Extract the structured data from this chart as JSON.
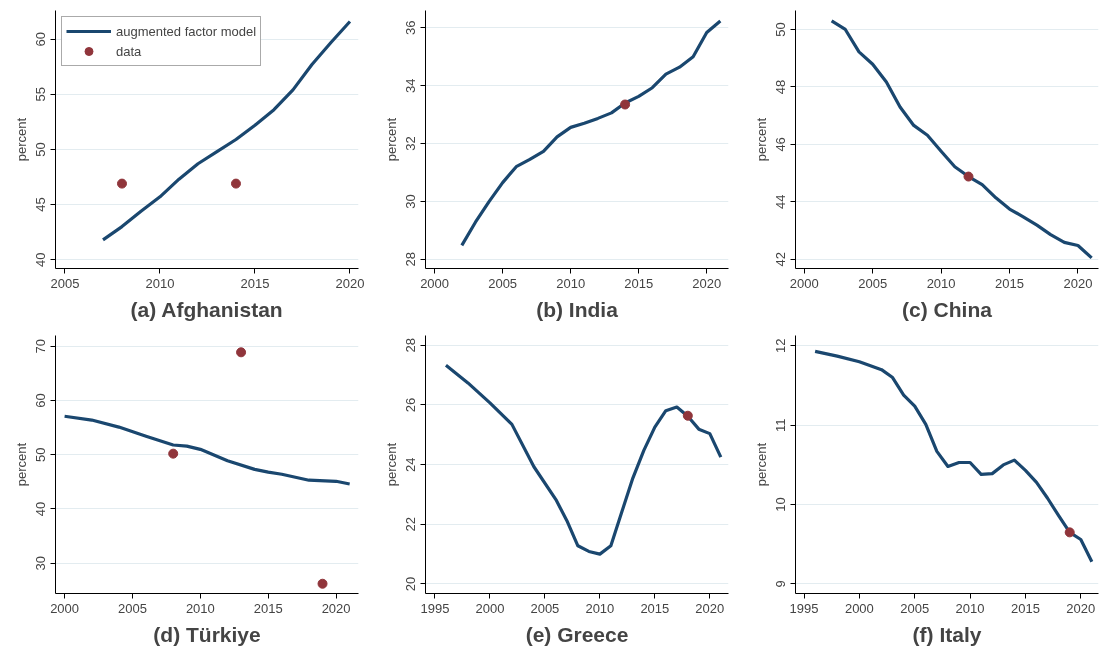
{
  "chart_data": [
    {
      "type": "line",
      "title": "(a) Afghanistan",
      "ylabel": "percent",
      "xlim": [
        2004.5,
        2020.45
      ],
      "ylim": [
        39.2,
        62.6
      ],
      "xticks": [
        2005,
        2010,
        2015,
        2020
      ],
      "yticks": [
        40,
        45,
        50,
        55,
        60
      ],
      "grid": "y",
      "legend": "top left",
      "series": [
        {
          "name": "augmented factor model",
          "color": "#1a476f",
          "x": [
            2007,
            2008,
            2009,
            2010,
            2011,
            2012,
            2013,
            2014,
            2015,
            2016,
            2017,
            2018,
            2019,
            2020
          ],
          "values": [
            41.8,
            43.0,
            44.4,
            45.7,
            47.3,
            48.7,
            49.8,
            50.9,
            52.2,
            53.6,
            55.4,
            57.7,
            59.7,
            61.6
          ]
        },
        {
          "name": "data",
          "type": "scatter",
          "marker": "circle",
          "color": "#90353b",
          "x": [
            2008,
            2014
          ],
          "values": [
            46.9,
            46.9
          ]
        }
      ]
    },
    {
      "type": "line",
      "title": "(b) India",
      "ylabel": "percent",
      "xlim": [
        1999.33,
        2021.6
      ],
      "ylim": [
        27.68,
        36.6
      ],
      "xticks": [
        2000,
        2005,
        2010,
        2015,
        2020
      ],
      "yticks": [
        28,
        30,
        32,
        34,
        36
      ],
      "grid": "y",
      "legend": false,
      "series": [
        {
          "color": "#1a476f",
          "x": [
            2002,
            2003,
            2004,
            2005,
            2006,
            2007,
            2008,
            2009,
            2010,
            2011,
            2012,
            2013,
            2014,
            2015,
            2016,
            2017,
            2018,
            2019,
            2020,
            2021
          ],
          "values": [
            28.48,
            29.28,
            29.99,
            30.65,
            31.2,
            31.45,
            31.73,
            32.23,
            32.56,
            32.7,
            32.87,
            33.06,
            33.4,
            33.63,
            33.93,
            34.4,
            34.64,
            35.0,
            35.84,
            36.24
          ]
        },
        {
          "type": "scatter",
          "marker": "circle",
          "color": "#90353b",
          "x": [
            2014
          ],
          "values": [
            33.35
          ]
        }
      ]
    },
    {
      "type": "line",
      "title": "(c) China",
      "ylabel": "percent",
      "xlim": [
        1999.36,
        2021.5
      ],
      "ylim": [
        41.68,
        50.66
      ],
      "xticks": [
        2000,
        2005,
        2010,
        2015,
        2020
      ],
      "yticks": [
        42,
        44,
        46,
        48,
        50
      ],
      "grid": "y",
      "legend": false,
      "series": [
        {
          "color": "#1a476f",
          "x": [
            2002,
            2003,
            2004,
            2005,
            2006,
            2007,
            2008,
            2009,
            2010,
            2011,
            2012,
            2013,
            2014,
            2015,
            2016,
            2017,
            2018,
            2019,
            2020,
            2021
          ],
          "values": [
            50.3,
            50.0,
            49.22,
            48.79,
            48.17,
            47.3,
            46.66,
            46.32,
            45.76,
            45.22,
            44.88,
            44.6,
            44.14,
            43.75,
            43.48,
            43.19,
            42.86,
            42.59,
            42.48,
            42.05
          ]
        },
        {
          "type": "scatter",
          "marker": "circle",
          "color": "#90353b",
          "x": [
            2012
          ],
          "values": [
            44.88
          ]
        }
      ]
    },
    {
      "type": "line",
      "title": "(d) Türkiye",
      "ylabel": "percent",
      "xlim": [
        1999.33,
        2021.65
      ],
      "ylim": [
        24.4,
        72
      ],
      "xticks": [
        2000,
        2005,
        2010,
        2015,
        2020
      ],
      "yticks": [
        30,
        40,
        50,
        60,
        70
      ],
      "grid": "y",
      "legend": false,
      "series": [
        {
          "color": "#1a476f",
          "x": [
            2000,
            2002,
            2004,
            2006,
            2008,
            2009,
            2010,
            2012,
            2014,
            2015,
            2016,
            2018,
            2020,
            2021
          ],
          "values": [
            57.1,
            56.4,
            55.1,
            53.4,
            51.8,
            51.6,
            51.0,
            48.9,
            47.3,
            46.8,
            46.4,
            45.3,
            45.1,
            44.6
          ]
        },
        {
          "type": "scatter",
          "marker": "circle",
          "color": "#90353b",
          "x": [
            2008,
            2013,
            2019
          ],
          "values": [
            50.2,
            68.9,
            26.2
          ]
        }
      ]
    },
    {
      "type": "line",
      "title": "(e) Greece",
      "ylabel": "percent",
      "xlim": [
        1994.14,
        2021.7
      ],
      "ylim": [
        19.68,
        28.33
      ],
      "xticks": [
        1995,
        2000,
        2005,
        2010,
        2015,
        2020
      ],
      "yticks": [
        20,
        22,
        24,
        26,
        28
      ],
      "grid": "y",
      "legend": false,
      "series": [
        {
          "color": "#1a476f",
          "x": [
            1996,
            1998,
            2000,
            2002,
            2004,
            2006,
            2007,
            2008,
            2009,
            2010,
            2011,
            2012,
            2013,
            2014,
            2015,
            2016,
            2017,
            2018,
            2019,
            2020,
            2021
          ],
          "values": [
            27.33,
            26.74,
            26.07,
            25.35,
            23.93,
            22.83,
            22.12,
            21.28,
            21.09,
            21.0,
            21.28,
            22.42,
            23.55,
            24.48,
            25.26,
            25.81,
            25.93,
            25.62,
            25.19,
            25.04,
            24.25
          ]
        },
        {
          "type": "scatter",
          "marker": "circle",
          "color": "#90353b",
          "x": [
            2018
          ],
          "values": [
            25.64
          ]
        }
      ]
    },
    {
      "type": "line",
      "title": "(f) Italy",
      "ylabel": "percent",
      "xlim": [
        1994.23,
        2021.6
      ],
      "ylim": [
        8.88,
        12.13
      ],
      "xticks": [
        1995,
        2000,
        2005,
        2010,
        2015,
        2020
      ],
      "yticks": [
        9,
        10,
        11,
        12
      ],
      "grid": "y",
      "legend": false,
      "series": [
        {
          "color": "#1a476f",
          "x": [
            1996,
            1998,
            2000,
            2002,
            2003,
            2004,
            2005,
            2006,
            2007,
            2008,
            2009,
            2010,
            2011,
            2012,
            2013,
            2014,
            2015,
            2016,
            2017,
            2018,
            2019,
            2020,
            2021
          ],
          "values": [
            11.93,
            11.87,
            11.8,
            11.7,
            11.6,
            11.38,
            11.24,
            11.01,
            10.67,
            10.48,
            10.53,
            10.53,
            10.38,
            10.39,
            10.5,
            10.56,
            10.43,
            10.28,
            10.08,
            9.86,
            9.65,
            9.56,
            9.28
          ]
        },
        {
          "type": "scatter",
          "marker": "circle",
          "color": "#90353b",
          "x": [
            2019
          ],
          "values": [
            9.65
          ]
        }
      ]
    }
  ]
}
